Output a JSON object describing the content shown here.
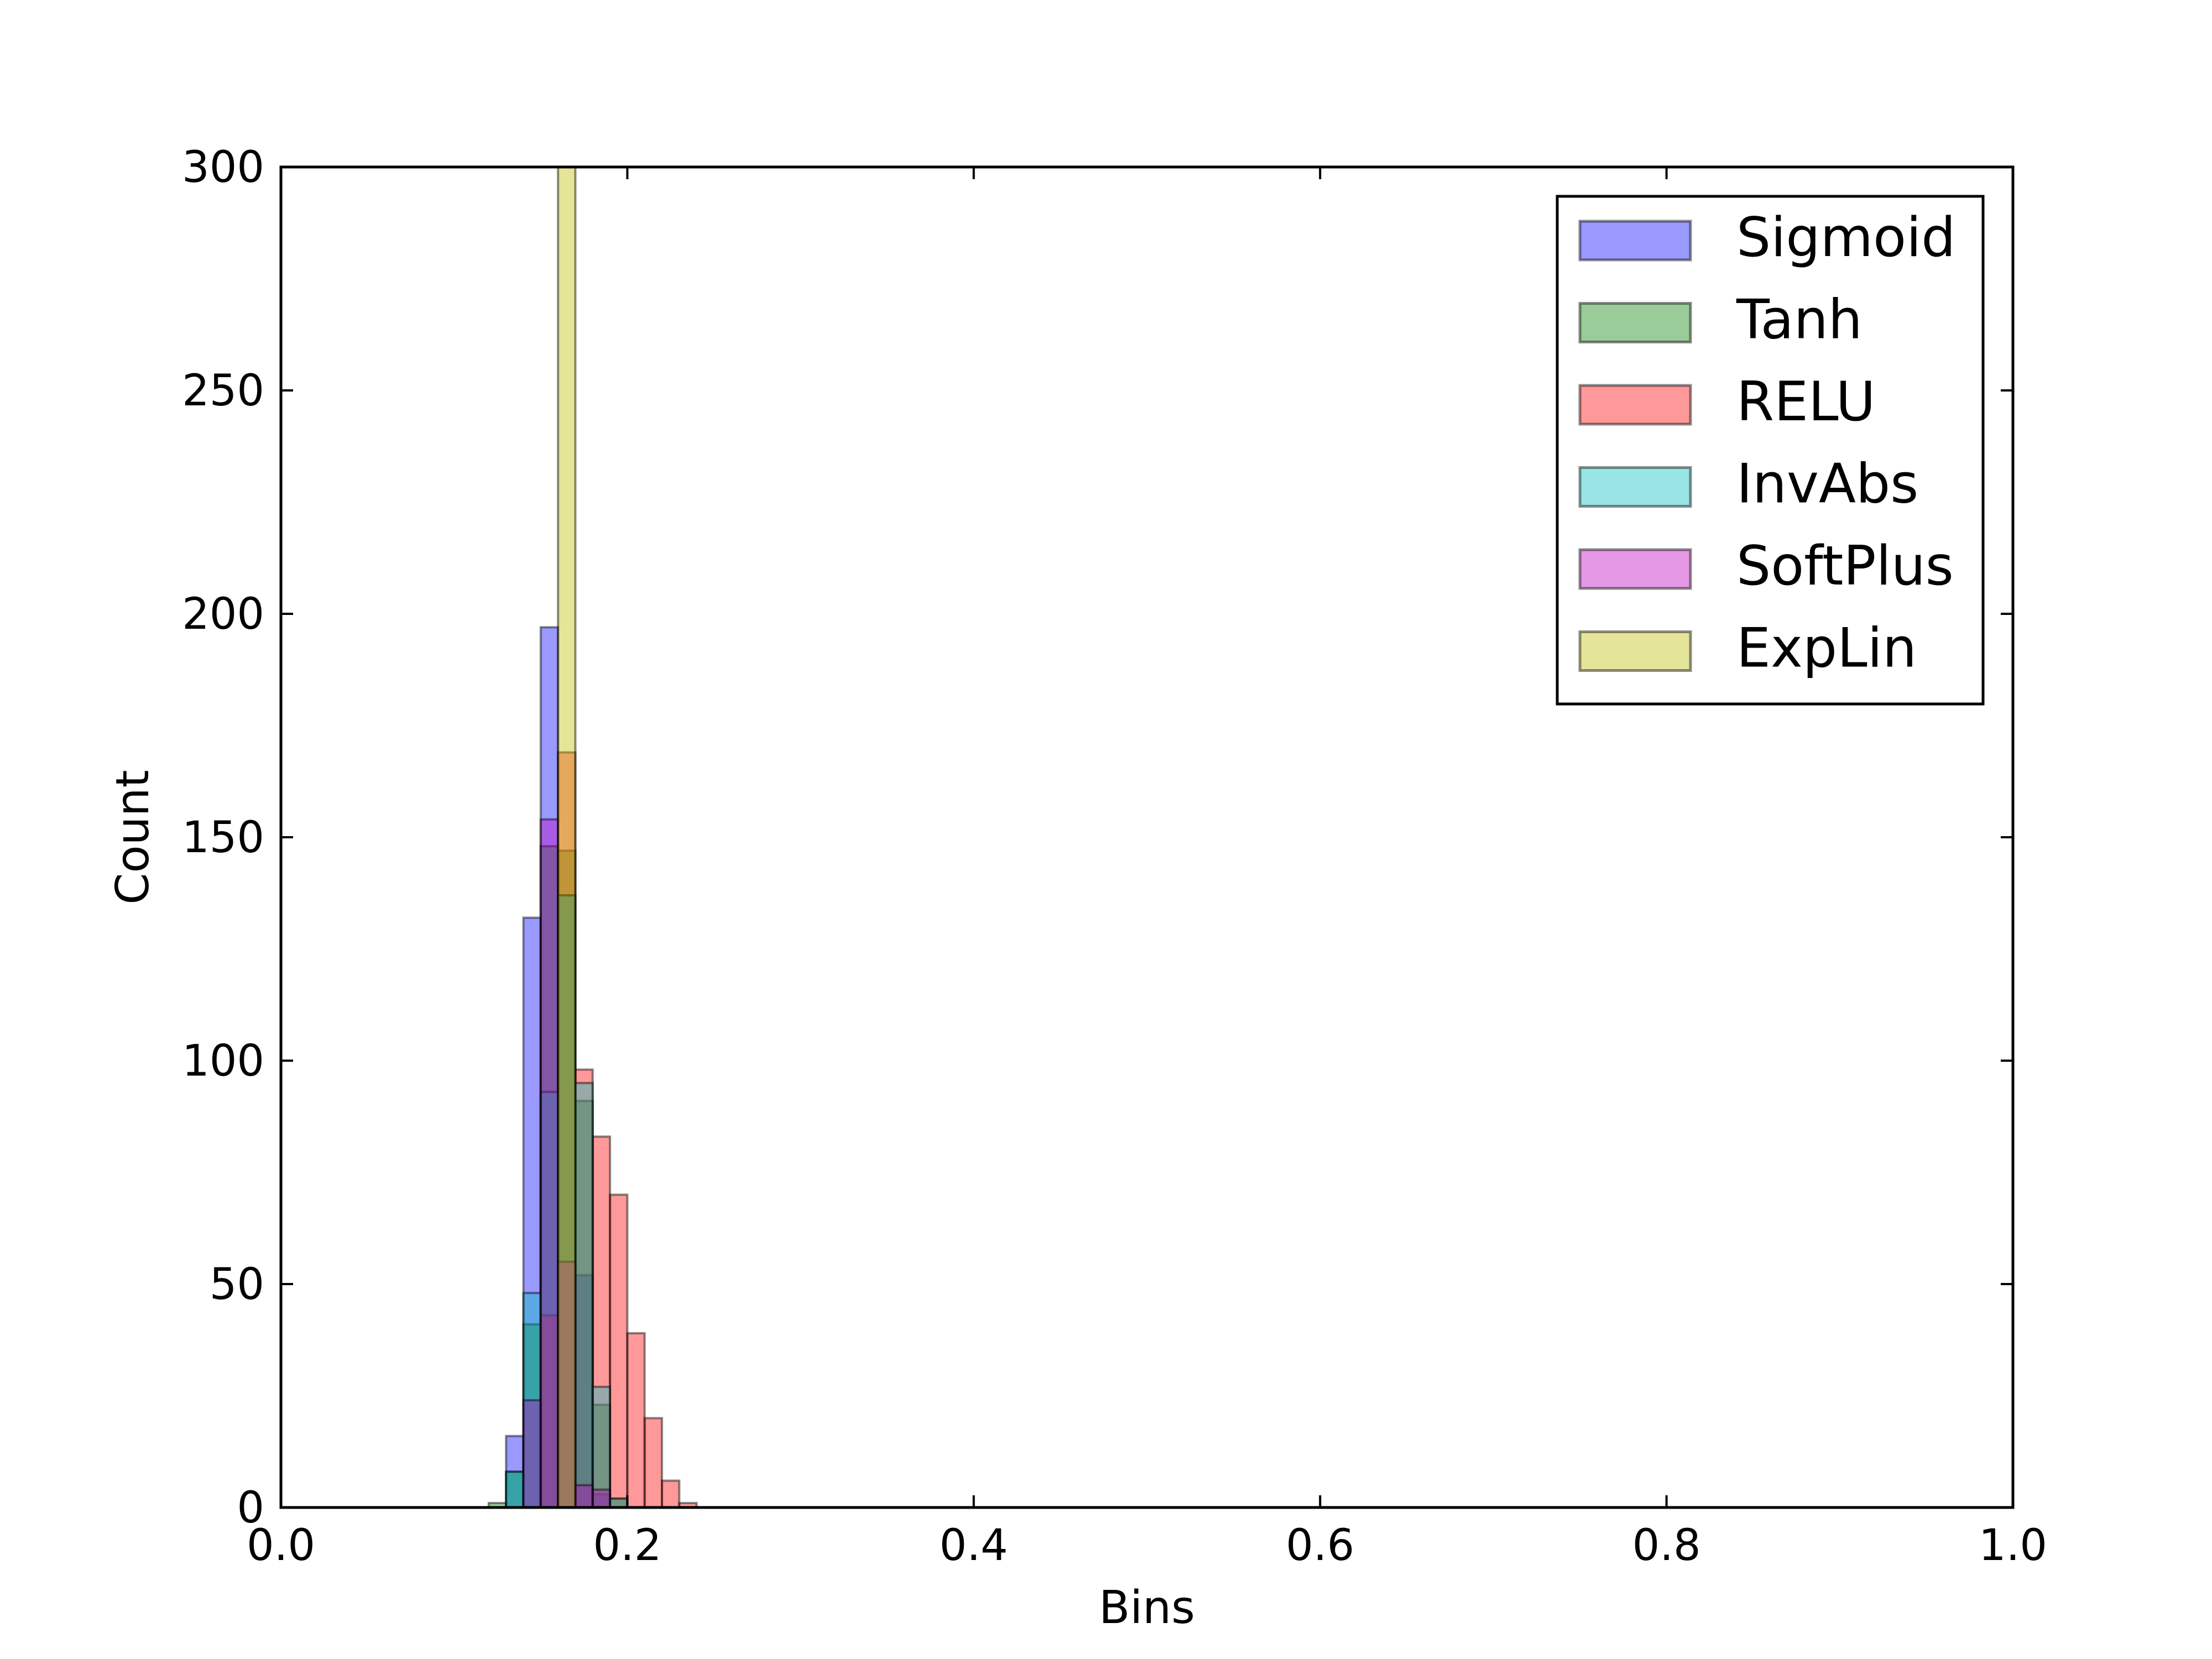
{
  "chart_data": {
    "type": "histogram",
    "title": "",
    "xlabel": "Bins",
    "ylabel": "Count",
    "xlim": [
      0.0,
      1.0
    ],
    "ylim": [
      0,
      300
    ],
    "xticks": [
      "0.0",
      "0.2",
      "0.4",
      "0.6",
      "0.8",
      "1.0"
    ],
    "yticks": [
      "0",
      "50",
      "100",
      "150",
      "200",
      "250",
      "300"
    ],
    "grid": false,
    "legend_position": "top-right",
    "bin_width": 0.01,
    "series": [
      {
        "name": "Sigmoid",
        "color": "#0000ff",
        "bins": [
          {
            "x0": 0.13,
            "x1": 0.14,
            "count": 16
          },
          {
            "x0": 0.14,
            "x1": 0.15,
            "count": 132
          },
          {
            "x0": 0.15,
            "x1": 0.16,
            "count": 197
          },
          {
            "x0": 0.16,
            "x1": 0.17,
            "count": 137
          },
          {
            "x0": 0.17,
            "x1": 0.18,
            "count": 52
          },
          {
            "x0": 0.18,
            "x1": 0.19,
            "count": 3
          }
        ]
      },
      {
        "name": "Tanh",
        "color": "#008000",
        "bins": [
          {
            "x0": 0.12,
            "x1": 0.13,
            "count": 1
          },
          {
            "x0": 0.13,
            "x1": 0.14,
            "count": 8
          },
          {
            "x0": 0.14,
            "x1": 0.15,
            "count": 41
          },
          {
            "x0": 0.15,
            "x1": 0.16,
            "count": 148
          },
          {
            "x0": 0.16,
            "x1": 0.17,
            "count": 147
          },
          {
            "x0": 0.17,
            "x1": 0.18,
            "count": 91
          },
          {
            "x0": 0.18,
            "x1": 0.19,
            "count": 23
          },
          {
            "x0": 0.19,
            "x1": 0.2,
            "count": 2
          }
        ]
      },
      {
        "name": "RELU",
        "color": "#ff0000",
        "bins": [
          {
            "x0": 0.15,
            "x1": 0.16,
            "count": 43
          },
          {
            "x0": 0.16,
            "x1": 0.17,
            "count": 169
          },
          {
            "x0": 0.17,
            "x1": 0.18,
            "count": 98
          },
          {
            "x0": 0.18,
            "x1": 0.19,
            "count": 83
          },
          {
            "x0": 0.19,
            "x1": 0.2,
            "count": 70
          },
          {
            "x0": 0.2,
            "x1": 0.21,
            "count": 39
          },
          {
            "x0": 0.21,
            "x1": 0.22,
            "count": 20
          },
          {
            "x0": 0.22,
            "x1": 0.23,
            "count": 6
          },
          {
            "x0": 0.23,
            "x1": 0.24,
            "count": 1
          }
        ]
      },
      {
        "name": "InvAbs",
        "color": "#00bfbf",
        "bins": [
          {
            "x0": 0.13,
            "x1": 0.14,
            "count": 8
          },
          {
            "x0": 0.14,
            "x1": 0.15,
            "count": 48
          },
          {
            "x0": 0.15,
            "x1": 0.16,
            "count": 93
          },
          {
            "x0": 0.16,
            "x1": 0.17,
            "count": 137
          },
          {
            "x0": 0.17,
            "x1": 0.18,
            "count": 95
          },
          {
            "x0": 0.18,
            "x1": 0.19,
            "count": 27
          },
          {
            "x0": 0.19,
            "x1": 0.2,
            "count": 2
          }
        ]
      },
      {
        "name": "SoftPlus",
        "color": "#bf00bf",
        "bins": [
          {
            "x0": 0.14,
            "x1": 0.15,
            "count": 24
          },
          {
            "x0": 0.15,
            "x1": 0.16,
            "count": 154
          },
          {
            "x0": 0.16,
            "x1": 0.17,
            "count": 55
          },
          {
            "x0": 0.17,
            "x1": 0.18,
            "count": 5
          },
          {
            "x0": 0.18,
            "x1": 0.19,
            "count": 4
          }
        ]
      },
      {
        "name": "ExpLin",
        "color": "#bfbf00",
        "bins": [
          {
            "x0": 0.16,
            "x1": 0.17,
            "count": 300
          }
        ]
      }
    ]
  }
}
